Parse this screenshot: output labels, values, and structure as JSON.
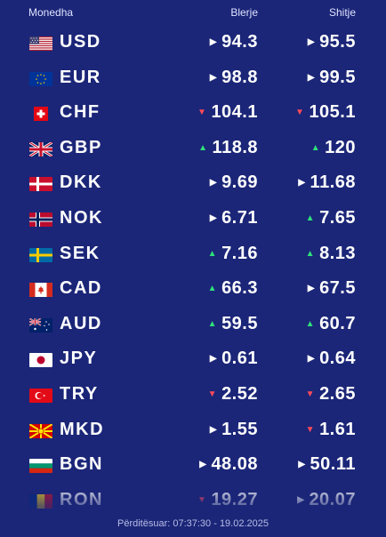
{
  "header": {
    "currency": "Monedha",
    "buy": "Blerje",
    "sell": "Shitje"
  },
  "rows": [
    {
      "code": "USD",
      "flag": "us-flag-icon",
      "buy": "94.3",
      "buy_trend": "same",
      "sell": "95.5",
      "sell_trend": "same"
    },
    {
      "code": "EUR",
      "flag": "eu-flag-icon",
      "buy": "98.8",
      "buy_trend": "same",
      "sell": "99.5",
      "sell_trend": "same"
    },
    {
      "code": "CHF",
      "flag": "ch-flag-icon",
      "buy": "104.1",
      "buy_trend": "down",
      "sell": "105.1",
      "sell_trend": "down"
    },
    {
      "code": "GBP",
      "flag": "gb-flag-icon",
      "buy": "118.8",
      "buy_trend": "up",
      "sell": "120",
      "sell_trend": "up"
    },
    {
      "code": "DKK",
      "flag": "dk-flag-icon",
      "buy": "9.69",
      "buy_trend": "same",
      "sell": "11.68",
      "sell_trend": "same"
    },
    {
      "code": "NOK",
      "flag": "no-flag-icon",
      "buy": "6.71",
      "buy_trend": "same",
      "sell": "7.65",
      "sell_trend": "up"
    },
    {
      "code": "SEK",
      "flag": "se-flag-icon",
      "buy": "7.16",
      "buy_trend": "up",
      "sell": "8.13",
      "sell_trend": "up"
    },
    {
      "code": "CAD",
      "flag": "ca-flag-icon",
      "buy": "66.3",
      "buy_trend": "up",
      "sell": "67.5",
      "sell_trend": "same"
    },
    {
      "code": "AUD",
      "flag": "au-flag-icon",
      "buy": "59.5",
      "buy_trend": "up",
      "sell": "60.7",
      "sell_trend": "up"
    },
    {
      "code": "JPY",
      "flag": "jp-flag-icon",
      "buy": "0.61",
      "buy_trend": "same",
      "sell": "0.64",
      "sell_trend": "same"
    },
    {
      "code": "TRY",
      "flag": "tr-flag-icon",
      "buy": "2.52",
      "buy_trend": "down",
      "sell": "2.65",
      "sell_trend": "down"
    },
    {
      "code": "MKD",
      "flag": "mk-flag-icon",
      "buy": "1.55",
      "buy_trend": "same",
      "sell": "1.61",
      "sell_trend": "down"
    },
    {
      "code": "BGN",
      "flag": "bg-flag-icon",
      "buy": "48.08",
      "buy_trend": "same",
      "sell": "50.11",
      "sell_trend": "same"
    },
    {
      "code": "RON",
      "flag": "ro-flag-icon",
      "buy": "19.27",
      "buy_trend": "down",
      "sell": "20.07",
      "sell_trend": "same"
    }
  ],
  "footer": {
    "updated": "Përditësuar: 07:37:30 - 19.02.2025"
  },
  "colors": {
    "background": "#1b2678",
    "up": "#2ee27a",
    "down": "#ff4a5a",
    "same": "#ffffff"
  }
}
